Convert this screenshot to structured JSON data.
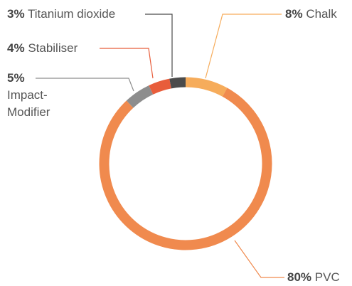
{
  "chart_data": {
    "type": "donut",
    "categories": [
      "Chalk",
      "PVC",
      "Impact-Modifier",
      "Stabiliser",
      "Titanium dioxide"
    ],
    "values": [
      8,
      80,
      5,
      4,
      3
    ],
    "value_labels": [
      "8%",
      "80%",
      "5%",
      "4%",
      "3%"
    ],
    "colors": [
      "#f6ac5b",
      "#f08a4e",
      "#8d8d8d",
      "#e85d3b",
      "#4b4b4b"
    ]
  }
}
